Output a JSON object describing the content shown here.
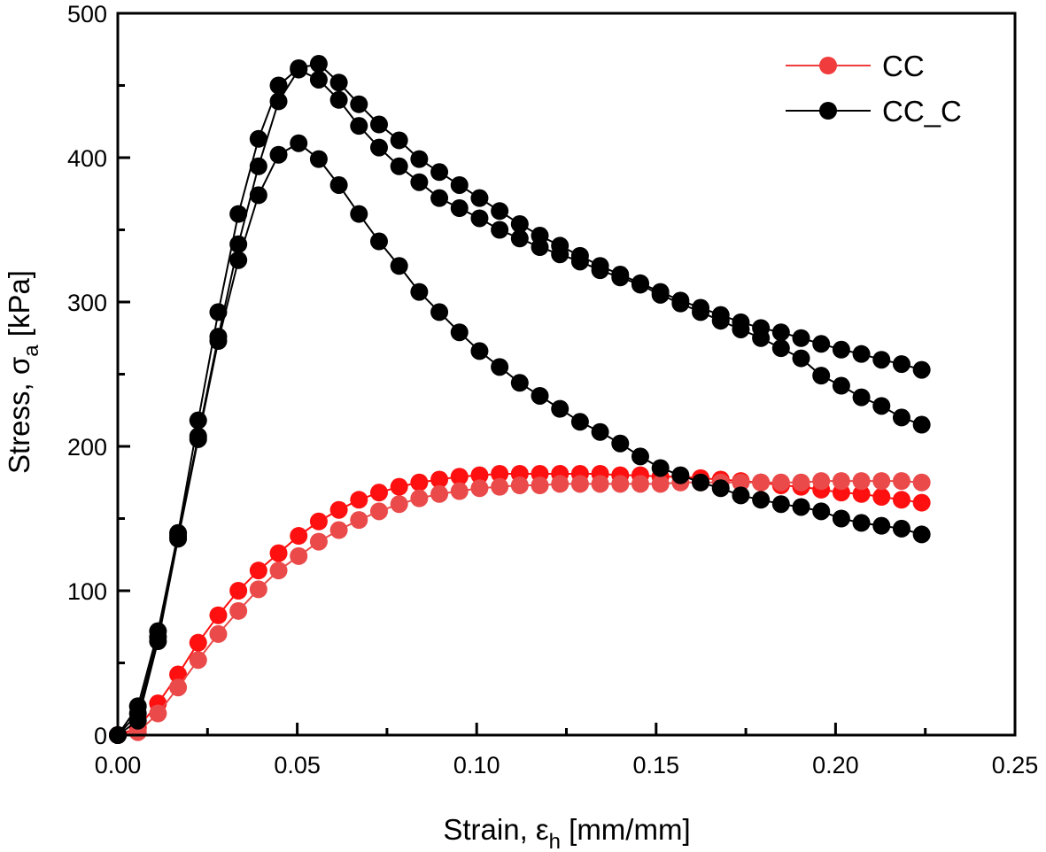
{
  "chart_data": {
    "type": "line",
    "title": "",
    "xlabel": "Strain, ε",
    "xlabel_sub": "h",
    "xlabel_unit": " [mm/mm]",
    "ylabel": "Stress, σ",
    "ylabel_sub": "a",
    "ylabel_unit": " [kPa]",
    "xlim": [
      0,
      0.25
    ],
    "ylim": [
      0,
      500
    ],
    "xticks": [
      0,
      0.05,
      0.1,
      0.15,
      0.2,
      0.25
    ],
    "xtick_labels": [
      "0.00",
      "0.05",
      "0.10",
      "0.15",
      "0.20",
      "0.25"
    ],
    "yticks": [
      0,
      100,
      200,
      300,
      400,
      500
    ],
    "ytick_labels": [
      "0",
      "100",
      "200",
      "300",
      "400",
      "500"
    ],
    "grid": false,
    "legend_position": "top-right",
    "legend": [
      {
        "name": "CC",
        "color": "#f03c3c"
      },
      {
        "name": "CC_C",
        "color": "#000000"
      }
    ],
    "x_step": 0.0056,
    "series": [
      {
        "name": "CC",
        "group": "CC",
        "color": "#ff1010",
        "values": [
          0,
          5,
          22,
          42,
          64,
          83,
          100,
          114,
          126,
          138,
          148,
          156,
          163,
          168,
          172,
          175,
          177,
          179,
          180,
          181,
          181,
          181,
          181,
          181,
          181,
          180,
          180,
          179,
          179,
          178,
          177,
          176,
          175,
          173,
          172,
          170,
          168,
          167,
          165,
          163,
          161
        ]
      },
      {
        "name": "CC",
        "group": "CC",
        "color": "#ea4a4a",
        "values": [
          0,
          2,
          15,
          33,
          52,
          70,
          86,
          101,
          114,
          124,
          134,
          142,
          149,
          155,
          160,
          164,
          167,
          169,
          171,
          172,
          173,
          173,
          174,
          174,
          174,
          174,
          174,
          174,
          175,
          175,
          175,
          175,
          175,
          175,
          175,
          176,
          176,
          176,
          176,
          176,
          175
        ]
      },
      {
        "name": "CC_C",
        "group": "CC_C",
        "color": "#000000",
        "values": [
          0,
          20,
          72,
          140,
          218,
          293,
          361,
          413,
          450,
          462,
          465,
          452,
          437,
          423,
          412,
          399,
          390,
          381,
          372,
          363,
          354,
          346,
          339,
          332,
          325,
          319,
          313,
          307,
          301,
          296,
          291,
          286,
          282,
          279,
          275,
          271,
          267,
          264,
          260,
          257,
          253
        ]
      },
      {
        "name": "CC_C",
        "group": "CC_C",
        "color": "#000000",
        "values": [
          0,
          15,
          68,
          138,
          207,
          276,
          340,
          394,
          439,
          461,
          454,
          440,
          422,
          407,
          394,
          383,
          372,
          365,
          358,
          350,
          344,
          338,
          333,
          328,
          322,
          317,
          312,
          305,
          299,
          293,
          287,
          281,
          275,
          268,
          261,
          249,
          242,
          234,
          228,
          220,
          215
        ]
      },
      {
        "name": "CC_C",
        "group": "CC_C",
        "color": "#000000",
        "values": [
          0,
          10,
          65,
          136,
          205,
          273,
          329,
          374,
          402,
          410,
          399,
          381,
          361,
          342,
          325,
          307,
          293,
          279,
          266,
          255,
          244,
          235,
          226,
          217,
          210,
          202,
          193,
          185,
          180,
          175,
          171,
          166,
          163,
          160,
          158,
          155,
          150,
          147,
          145,
          143,
          139
        ]
      }
    ]
  }
}
